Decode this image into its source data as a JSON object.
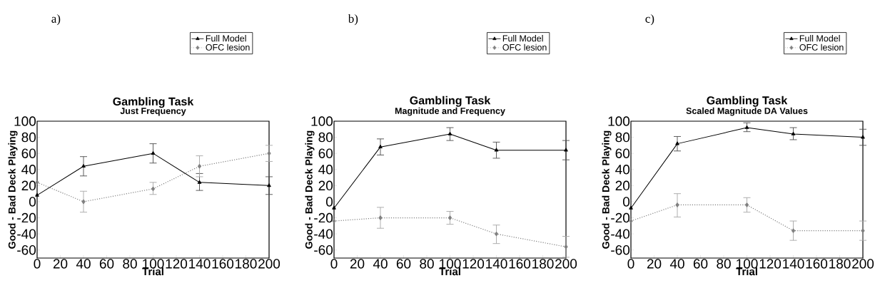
{
  "chart_data": [
    {
      "type": "line",
      "title": "Gambling Task",
      "subtitle": "Just Frequency",
      "xlabel": "Trial",
      "ylabel": "Good - Bad Deck Playing",
      "annotations": [
        "a)"
      ],
      "xlim": [
        0,
        200
      ],
      "ylim": [
        -70,
        100
      ],
      "xticks": [
        0,
        20,
        40,
        60,
        80,
        100,
        120,
        140,
        160,
        180,
        200
      ],
      "yticks": [
        -60,
        -40,
        -20,
        0,
        20,
        40,
        60,
        80,
        100
      ],
      "legend": "top right",
      "series": [
        {
          "name": "Full Model",
          "color": "#000000",
          "marker": "triangle",
          "line_style": "solid",
          "x": [
            0,
            40,
            100,
            140,
            200
          ],
          "values": [
            8,
            44,
            60,
            24,
            20
          ],
          "errors": [
            null,
            [
              32,
              56
            ],
            [
              48,
              72
            ],
            [
              14,
              35
            ],
            [
              9,
              31
            ]
          ]
        },
        {
          "name": "OFC lesion",
          "color": "#808080",
          "marker": "diamond",
          "line_style": "dotted",
          "x": [
            0,
            40,
            100,
            140,
            200
          ],
          "values": [
            24,
            0,
            16,
            44,
            60
          ],
          "errors": [
            null,
            [
              -13,
              13
            ],
            [
              9,
              24
            ],
            [
              31,
              57
            ],
            [
              50,
              70
            ]
          ]
        }
      ]
    },
    {
      "type": "line",
      "title": "Gambling Task",
      "subtitle": "Magnitude and Frequency",
      "xlabel": "Trial",
      "ylabel": "Good - Bad Deck Playing",
      "annotations": [
        "b)"
      ],
      "xlim": [
        0,
        200
      ],
      "ylim": [
        -70,
        100
      ],
      "xticks": [
        0,
        20,
        40,
        60,
        80,
        100,
        120,
        140,
        160,
        180,
        200
      ],
      "yticks": [
        -60,
        -40,
        -20,
        0,
        20,
        40,
        60,
        80,
        100
      ],
      "legend": "top right",
      "series": [
        {
          "name": "Full Model",
          "color": "#000000",
          "marker": "triangle",
          "line_style": "solid",
          "x": [
            0,
            40,
            100,
            140,
            200
          ],
          "values": [
            -8,
            68,
            84,
            64,
            64
          ],
          "errors": [
            null,
            [
              58,
              78
            ],
            [
              76,
              92
            ],
            [
              54,
              74
            ],
            [
              52,
              76
            ]
          ]
        },
        {
          "name": "OFC lesion",
          "color": "#808080",
          "marker": "diamond",
          "line_style": "dotted",
          "x": [
            0,
            40,
            100,
            140,
            200
          ],
          "values": [
            -24,
            -20,
            -20,
            -40,
            -56
          ],
          "errors": [
            null,
            [
              -33,
              -7
            ],
            [
              -28,
              -12
            ],
            [
              -52,
              -29
            ],
            [
              -69,
              -43
            ]
          ]
        }
      ]
    },
    {
      "type": "line",
      "title": "Gambling Task",
      "subtitle": "Scaled Magnitude DA Values",
      "xlabel": "Trial",
      "ylabel": "Good - Bad Deck Playing",
      "annotations": [
        "c)"
      ],
      "xlim": [
        0,
        200
      ],
      "ylim": [
        -70,
        100
      ],
      "xticks": [
        0,
        20,
        40,
        60,
        80,
        100,
        120,
        140,
        160,
        180,
        200
      ],
      "yticks": [
        -60,
        -40,
        -20,
        0,
        20,
        40,
        60,
        80,
        100
      ],
      "legend": "top right",
      "series": [
        {
          "name": "Full Model",
          "color": "#000000",
          "marker": "triangle",
          "line_style": "solid",
          "x": [
            0,
            40,
            100,
            140,
            200
          ],
          "values": [
            -8,
            72,
            92,
            84,
            80
          ],
          "errors": [
            null,
            [
              63,
              81
            ],
            [
              87,
              98
            ],
            [
              77,
              92
            ],
            [
              70,
              90
            ]
          ]
        },
        {
          "name": "OFC lesion",
          "color": "#808080",
          "marker": "diamond",
          "line_style": "dotted",
          "x": [
            0,
            40,
            100,
            140,
            200
          ],
          "values": [
            -24,
            -4,
            -4,
            -36,
            -36
          ],
          "errors": [
            null,
            [
              -19,
              10
            ],
            [
              -13,
              5
            ],
            [
              -48,
              -24
            ],
            [
              -48,
              -24
            ]
          ]
        }
      ]
    }
  ]
}
